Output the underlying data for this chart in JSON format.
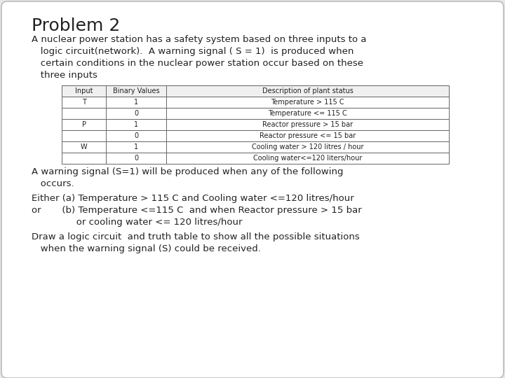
{
  "title": "Problem 2",
  "bg_color": "#e8e8e8",
  "card_color": "#ffffff",
  "para1": "A nuclear power station has a safety system based on three inputs to a",
  "para1b": "   logic circuit(network).  A warning signal ( S = 1)  is produced when",
  "para1c": "   certain conditions in the nuclear power station occur based on these",
  "para1d": "   three inputs",
  "table_headers": [
    "Input",
    "Binary Values",
    "Description of plant status"
  ],
  "table_rows": [
    [
      "T",
      "1",
      "Temperature > 115 C"
    ],
    [
      "",
      "0",
      "Temperature <= 115 C"
    ],
    [
      "P",
      "1",
      "Reactor pressure > 15 bar"
    ],
    [
      "",
      "0",
      "Reactor pressure <= 15 bar"
    ],
    [
      "W",
      "1",
      "Cooling water > 120 litres / hour"
    ],
    [
      "",
      "0",
      "Cooling water<=120 liters/hour"
    ]
  ],
  "para2": "A warning signal (S=1) will be produced when any of the following",
  "para2b": "   occurs.",
  "para3a": "Either (a) Temperature > 115 C and Cooling water <=120 litres/hour",
  "para3b": "or       (b) Temperature <=115 C  and when Reactor pressure > 15 bar",
  "para3c": "               or cooling water <= 120 litres/hour",
  "para4a": "Draw a logic circuit  and truth table to show all the possible situations",
  "para4b": "   when the warning signal (S) could be received.",
  "title_fontsize": 18,
  "body_fontsize": 9.5,
  "table_fontsize": 7.0,
  "text_color": "#222222",
  "card_edge_color": "#bbbbbb"
}
